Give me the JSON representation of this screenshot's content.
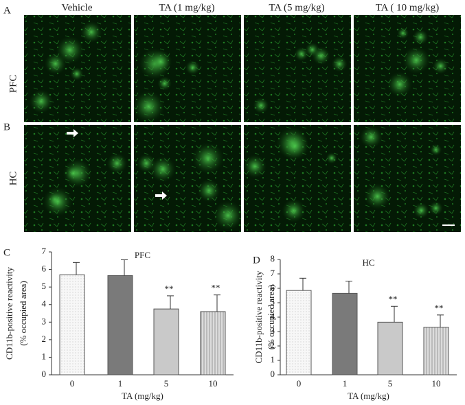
{
  "images": {
    "labels": [
      "A",
      "B"
    ],
    "columns": [
      "Vehicle",
      "TA (1 mg/kg)",
      "TA (5 mg/kg)",
      "TA ( 10 mg/kg)"
    ],
    "rows": [
      "PFC",
      "HC"
    ]
  },
  "chart_data": [
    {
      "type": "bar",
      "label": "C",
      "title": "PFC",
      "ylabel": [
        "CD11b-positive reactivity",
        "(% occupied area)"
      ],
      "xlabel": "TA  (mg/kg)",
      "categories": [
        "0",
        "1",
        "5",
        "10"
      ],
      "values": [
        5.7,
        5.65,
        3.75,
        3.6
      ],
      "errors": [
        0.7,
        0.9,
        0.75,
        0.95
      ],
      "annotations": [
        null,
        null,
        "**",
        "**"
      ],
      "colors": [
        "#f7f7f7",
        "#7a7a7a",
        "#c9c9c9",
        "#dcdcdc"
      ],
      "ylim": [
        0,
        7
      ],
      "yticks": [
        0,
        1,
        2,
        3,
        4,
        5,
        6,
        7
      ]
    },
    {
      "type": "bar",
      "label": "D",
      "title": "HC",
      "ylabel": [
        "CD11b-positive reactivity",
        "(% occupied area)"
      ],
      "xlabel": "TA  (mg/kg)",
      "categories": [
        "0",
        "1",
        "5",
        "10"
      ],
      "values": [
        5.85,
        5.65,
        3.65,
        3.3
      ],
      "errors": [
        0.85,
        0.85,
        1.1,
        0.85
      ],
      "annotations": [
        null,
        null,
        "**",
        "**"
      ],
      "colors": [
        "#f7f7f7",
        "#7a7a7a",
        "#c9c9c9",
        "#dcdcdc"
      ],
      "ylim": [
        0,
        8
      ],
      "yticks": [
        0,
        1,
        2,
        3,
        4,
        5,
        6,
        7,
        8
      ]
    }
  ]
}
